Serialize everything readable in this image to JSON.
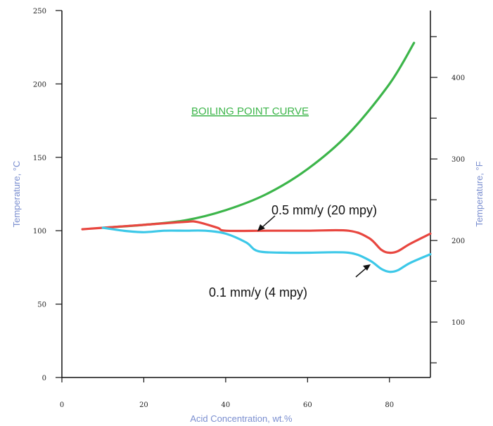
{
  "chart_data": {
    "type": "line",
    "title": "",
    "xlabel": "Acid Concentration, wt.%",
    "ylabel": "Temperature, °C",
    "y2label": "Temperature, °F",
    "xlim": [
      0,
      90
    ],
    "ylim": [
      0,
      250
    ],
    "y2lim": [
      32,
      482
    ],
    "x_ticks": [
      0,
      20,
      40,
      60,
      80
    ],
    "y_ticks": [
      0,
      50,
      100,
      150,
      200,
      250
    ],
    "y2_ticks": [
      100,
      200,
      300,
      400
    ],
    "grid": false,
    "colors": {
      "boiling": "#3cb54a",
      "red": "#e8463f",
      "cyan": "#3cc8e8",
      "axis_title": "#7b8fd0",
      "axis": "#111111"
    },
    "series": [
      {
        "name": "BOILING POINT CURVE",
        "x": [
          10,
          20,
          30,
          40,
          50,
          60,
          70,
          80,
          86
        ],
        "y": [
          102,
          104,
          107,
          114,
          125,
          142,
          166,
          200,
          228
        ]
      },
      {
        "name": "0.5 mm/y (20 mpy)",
        "x": [
          5,
          10,
          20,
          30,
          33,
          38,
          40,
          50,
          60,
          70,
          75,
          78,
          80,
          82,
          85,
          90
        ],
        "y": [
          101,
          102,
          104,
          106,
          106,
          102,
          100,
          100,
          100,
          100,
          95,
          87,
          85,
          86,
          91,
          98
        ]
      },
      {
        "name": "0.1 mm/y (4 mpy)",
        "x": [
          10,
          15,
          20,
          25,
          30,
          35,
          40,
          45,
          48,
          55,
          60,
          70,
          75,
          78,
          80,
          82,
          85,
          90
        ],
        "y": [
          102,
          100,
          99,
          100,
          100,
          100,
          98,
          92,
          86,
          85,
          85,
          85,
          80,
          74,
          72,
          73,
          78,
          84
        ]
      }
    ],
    "annotations": {
      "boiling_label": "BOILING POINT CURVE",
      "red_label": "0.5 mm/y (20 mpy)",
      "cyan_label": "0.1 mm/y (4 mpy)"
    }
  }
}
